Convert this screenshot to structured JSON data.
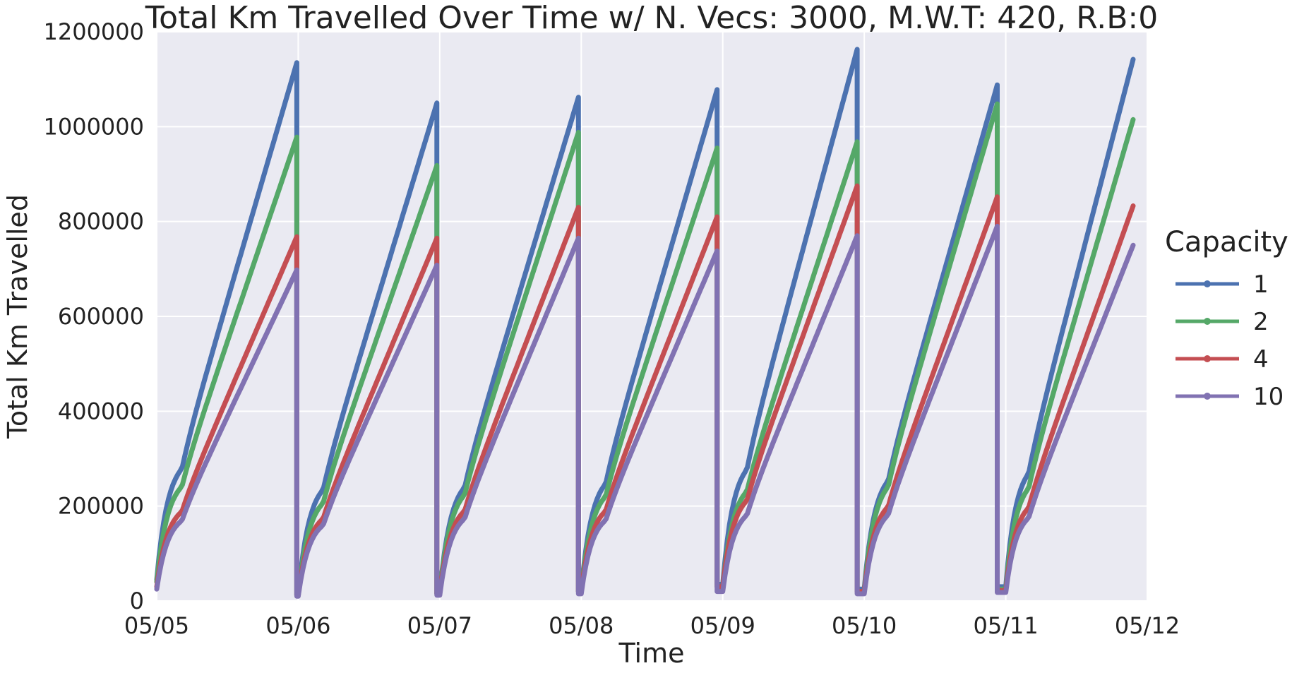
{
  "chart_data": {
    "type": "line",
    "title": "Total Km Travelled Over Time w/ N. Vecs: 3000, M.W.T: 420, R.B:0",
    "xlabel": "Time",
    "ylabel": "Total Km Travelled",
    "x_ticks": [
      "05/05",
      "05/06",
      "05/07",
      "05/08",
      "05/09",
      "05/10",
      "05/11",
      "05/12"
    ],
    "x_range_days": [
      0,
      7
    ],
    "y_ticks": [
      "0",
      "200000",
      "400000",
      "600000",
      "800000",
      "1000000",
      "1200000"
    ],
    "ylim": [
      0,
      1200000
    ],
    "grid": true,
    "legend": {
      "title": "Capacity",
      "placement": "right"
    },
    "series": [
      {
        "name": "1",
        "color": "#4c72b0",
        "day_peaks": [
          1135000,
          1050000,
          1062000,
          1078000,
          1163000,
          1088000,
          1142000
        ],
        "day_starts": [
          45000,
          12000,
          15000,
          20000,
          35000,
          25000,
          30000
        ],
        "day_ends": [
          0.99,
          1.98,
          2.98,
          3.96,
          4.95,
          5.94,
          6.9
        ]
      },
      {
        "name": "2",
        "color": "#55a868",
        "day_peaks": [
          978000,
          918000,
          988000,
          955000,
          968000,
          1048000,
          1015000
        ],
        "day_starts": [
          40000,
          12000,
          15000,
          20000,
          30000,
          20000,
          25000
        ],
        "day_ends": [
          0.99,
          1.98,
          2.98,
          3.96,
          4.95,
          5.94,
          6.9
        ]
      },
      {
        "name": "4",
        "color": "#c44e52",
        "day_peaks": [
          768000,
          765000,
          830000,
          810000,
          875000,
          852000,
          833000
        ],
        "day_starts": [
          30000,
          12000,
          15000,
          20000,
          30000,
          20000,
          22000
        ],
        "day_ends": [
          0.99,
          1.98,
          2.98,
          3.96,
          4.95,
          5.94,
          6.9
        ]
      },
      {
        "name": "10",
        "color": "#8172b2",
        "day_peaks": [
          698000,
          708000,
          765000,
          738000,
          770000,
          790000,
          750000
        ],
        "day_starts": [
          25000,
          10000,
          12000,
          15000,
          20000,
          15000,
          18000
        ],
        "day_ends": [
          0.99,
          1.98,
          2.98,
          3.96,
          4.95,
          5.94,
          6.9
        ]
      }
    ]
  }
}
